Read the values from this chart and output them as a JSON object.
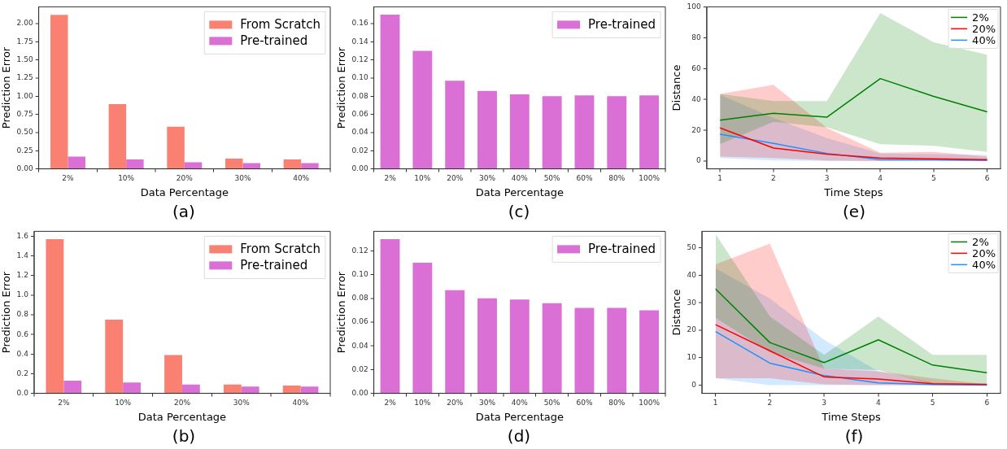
{
  "chart_data": [
    {
      "type": "bar",
      "xlabel": "Data Percentage",
      "ylabel": "Prediction Error",
      "categories": [
        "2%",
        "10%",
        "20%",
        "30%",
        "40%"
      ],
      "series": [
        {
          "name": "From Scratch",
          "color": "#fa8072",
          "values": [
            2.12,
            0.89,
            0.58,
            0.14,
            0.13
          ]
        },
        {
          "name": "Pre-trained",
          "color": "#da70d6",
          "values": [
            0.17,
            0.13,
            0.09,
            0.08,
            0.08
          ]
        }
      ],
      "ylim": [
        0,
        2.23
      ],
      "yticks": [
        {
          "value": 0,
          "label": "0.00"
        },
        {
          "value": 0.25,
          "label": "0.25"
        },
        {
          "value": 0.5,
          "label": "0.50"
        },
        {
          "value": 0.75,
          "label": "0.75"
        },
        {
          "value": 1,
          "label": "1.00"
        },
        {
          "value": 1.25,
          "label": "1.25"
        },
        {
          "value": 1.5,
          "label": "1.50"
        },
        {
          "value": 1.75,
          "label": "1.75"
        },
        {
          "value": 2,
          "label": "2.00"
        }
      ],
      "legend": "top right",
      "annotations": [
        "(a)"
      ]
    },
    {
      "type": "bar",
      "xlabel": "Data Percentage",
      "ylabel": "Prediction Error",
      "categories": [
        "2%",
        "10%",
        "20%",
        "30%",
        "40%",
        "50%",
        "60%",
        "80%",
        "100%"
      ],
      "series": [
        {
          "name": "Pre-trained",
          "color": "#da70d6",
          "values": [
            0.17,
            0.13,
            0.097,
            0.086,
            0.082,
            0.08,
            0.081,
            0.08,
            0.081
          ]
        }
      ],
      "ylim": [
        0,
        0.1785
      ],
      "yticks": [
        {
          "value": 0,
          "label": "0.00"
        },
        {
          "value": 0.02,
          "label": "0.02"
        },
        {
          "value": 0.04,
          "label": "0.04"
        },
        {
          "value": 0.06,
          "label": "0.06"
        },
        {
          "value": 0.08,
          "label": "0.08"
        },
        {
          "value": 0.1,
          "label": "0.10"
        },
        {
          "value": 0.12,
          "label": "0.12"
        },
        {
          "value": 0.14,
          "label": "0.14"
        },
        {
          "value": 0.16,
          "label": "0.16"
        }
      ],
      "legend": "top right",
      "annotations": [
        "(c)"
      ]
    },
    {
      "type": "line",
      "xlabel": "Time Steps",
      "ylabel": "Distance",
      "x": [
        1,
        2,
        3,
        4,
        5,
        6
      ],
      "series": [
        {
          "name": "2%",
          "color": "#008000",
          "values": [
            26.5,
            31,
            28.5,
            53.5,
            42,
            32
          ],
          "lower": [
            11,
            25.5,
            22,
            11,
            10,
            6
          ],
          "upper": [
            43.5,
            39,
            39,
            96,
            77,
            69
          ]
        },
        {
          "name": "20%",
          "color": "#ff0000",
          "values": [
            21.5,
            8.5,
            4.5,
            2,
            1.5,
            1
          ],
          "lower": [
            3,
            2,
            0.5,
            0,
            0,
            0
          ],
          "upper": [
            43.5,
            49.5,
            21.5,
            5.5,
            6,
            3
          ]
        },
        {
          "name": "40%",
          "color": "#1e90ff",
          "values": [
            17.5,
            11.5,
            5,
            1,
            1,
            0.5
          ],
          "lower": [
            2,
            0.5,
            0,
            0,
            0,
            0
          ],
          "upper": [
            43,
            28,
            15,
            5,
            4.5,
            4
          ]
        }
      ],
      "xlim": [
        0.75,
        6.25
      ],
      "xticks": [
        1,
        2,
        3,
        4,
        5,
        6
      ],
      "ylim": [
        -5,
        100
      ],
      "yticks": [
        0,
        20,
        40,
        60,
        80,
        100
      ],
      "legend": "top right",
      "annotations": [
        "(e)"
      ]
    },
    {
      "type": "bar",
      "xlabel": "Data Percentage",
      "ylabel": "Prediction Error",
      "categories": [
        "2%",
        "10%",
        "20%",
        "30%",
        "40%"
      ],
      "series": [
        {
          "name": "From Scratch",
          "color": "#fa8072",
          "values": [
            1.57,
            0.75,
            0.39,
            0.09,
            0.08
          ]
        },
        {
          "name": "Pre-trained",
          "color": "#da70d6",
          "values": [
            0.13,
            0.11,
            0.09,
            0.07,
            0.07
          ]
        }
      ],
      "ylim": [
        0,
        1.65
      ],
      "yticks": [
        {
          "value": 0,
          "label": "0.0"
        },
        {
          "value": 0.2,
          "label": "0.2"
        },
        {
          "value": 0.4,
          "label": "0.4"
        },
        {
          "value": 0.6,
          "label": "0.6"
        },
        {
          "value": 0.8,
          "label": "0.8"
        },
        {
          "value": 1,
          "label": "1.0"
        },
        {
          "value": 1.2,
          "label": "1.2"
        },
        {
          "value": 1.4,
          "label": "1.4"
        },
        {
          "value": 1.6,
          "label": "1.6"
        }
      ],
      "legend": "top right",
      "annotations": [
        "(b)"
      ]
    },
    {
      "type": "bar",
      "xlabel": "Data Percentage",
      "ylabel": "Prediction Error",
      "categories": [
        "2%",
        "10%",
        "20%",
        "30%",
        "40%",
        "50%",
        "60%",
        "80%",
        "100%"
      ],
      "series": [
        {
          "name": "Pre-trained",
          "color": "#da70d6",
          "values": [
            0.13,
            0.11,
            0.087,
            0.08,
            0.079,
            0.076,
            0.072,
            0.072,
            0.07
          ]
        }
      ],
      "ylim": [
        0,
        0.1365
      ],
      "yticks": [
        {
          "value": 0,
          "label": "0.00"
        },
        {
          "value": 0.02,
          "label": "0.02"
        },
        {
          "value": 0.04,
          "label": "0.04"
        },
        {
          "value": 0.06,
          "label": "0.06"
        },
        {
          "value": 0.08,
          "label": "0.08"
        },
        {
          "value": 0.1,
          "label": "0.10"
        },
        {
          "value": 0.12,
          "label": "0.12"
        }
      ],
      "legend": "top right",
      "annotations": [
        "(d)"
      ]
    },
    {
      "type": "line",
      "xlabel": "Time Steps",
      "ylabel": "Distance",
      "x": [
        1,
        2,
        3,
        4,
        5,
        6
      ],
      "series": [
        {
          "name": "2%",
          "color": "#008000",
          "values": [
            35,
            15.5,
            8.2,
            16.5,
            7.3,
            4.5
          ],
          "lower": [
            24.5,
            12,
            6,
            5.5,
            0.3,
            0
          ],
          "upper": [
            55,
            25,
            11,
            25,
            11,
            11
          ]
        },
        {
          "name": "20%",
          "color": "#ff0000",
          "values": [
            22,
            12.5,
            3,
            2.2,
            0.5,
            0.3
          ],
          "lower": [
            2.5,
            2.5,
            0.3,
            0,
            0,
            0
          ],
          "upper": [
            44,
            51.5,
            6,
            5,
            2.5,
            0.3
          ]
        },
        {
          "name": "40%",
          "color": "#1e90ff",
          "values": [
            19.5,
            8,
            3.5,
            0.8,
            0.2,
            0
          ],
          "lower": [
            2.5,
            0,
            0,
            0,
            0,
            0
          ],
          "upper": [
            42.5,
            31.5,
            16.5,
            5,
            1,
            0
          ]
        }
      ],
      "xlim": [
        0.75,
        6.25
      ],
      "xticks": [
        1,
        2,
        3,
        4,
        5,
        6
      ],
      "ylim": [
        -3,
        56
      ],
      "yticks": [
        0,
        10,
        20,
        30,
        40,
        50
      ],
      "legend": "top right",
      "annotations": [
        "(f)"
      ]
    }
  ]
}
